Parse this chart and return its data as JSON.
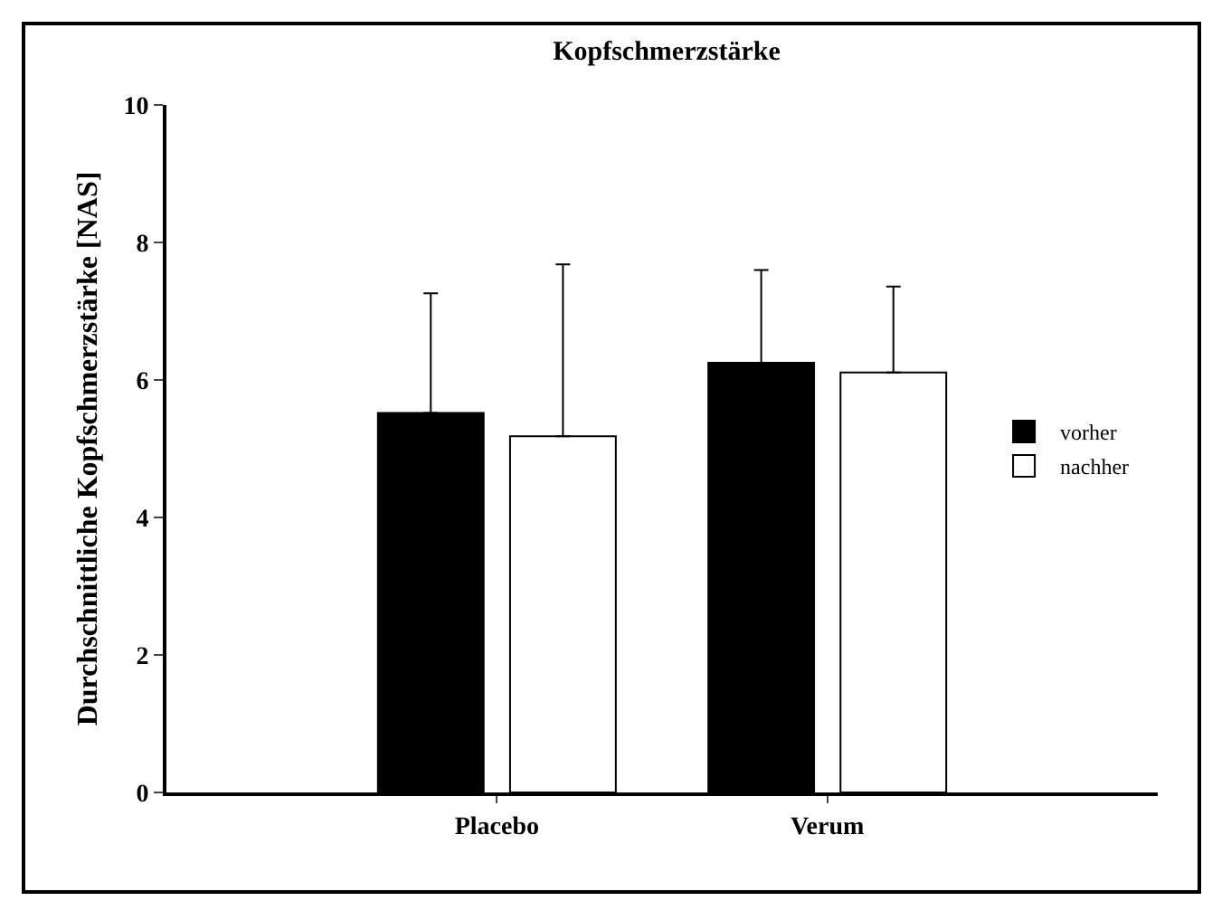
{
  "chart_data": {
    "type": "bar",
    "title": "Kopfschmerzstärke",
    "ylabel": "Durchschnittliche Kopfschmerzstärke [NAS]",
    "categories": [
      "Placebo",
      "Verum"
    ],
    "series": [
      {
        "name": "vorher",
        "color": "#000000",
        "values": [
          5.52,
          6.25
        ],
        "errors": [
          [
            5.52,
            7.26
          ],
          [
            6.25,
            7.6
          ]
        ]
      },
      {
        "name": "nachher",
        "color": "#ffffff",
        "values": [
          5.18,
          6.11
        ],
        "errors": [
          [
            5.18,
            7.68
          ],
          [
            6.11,
            7.36
          ]
        ]
      }
    ],
    "ylim": [
      0,
      10
    ],
    "yticks": [
      0,
      2,
      4,
      6,
      8,
      10
    ],
    "grid": false,
    "legend": "right"
  }
}
